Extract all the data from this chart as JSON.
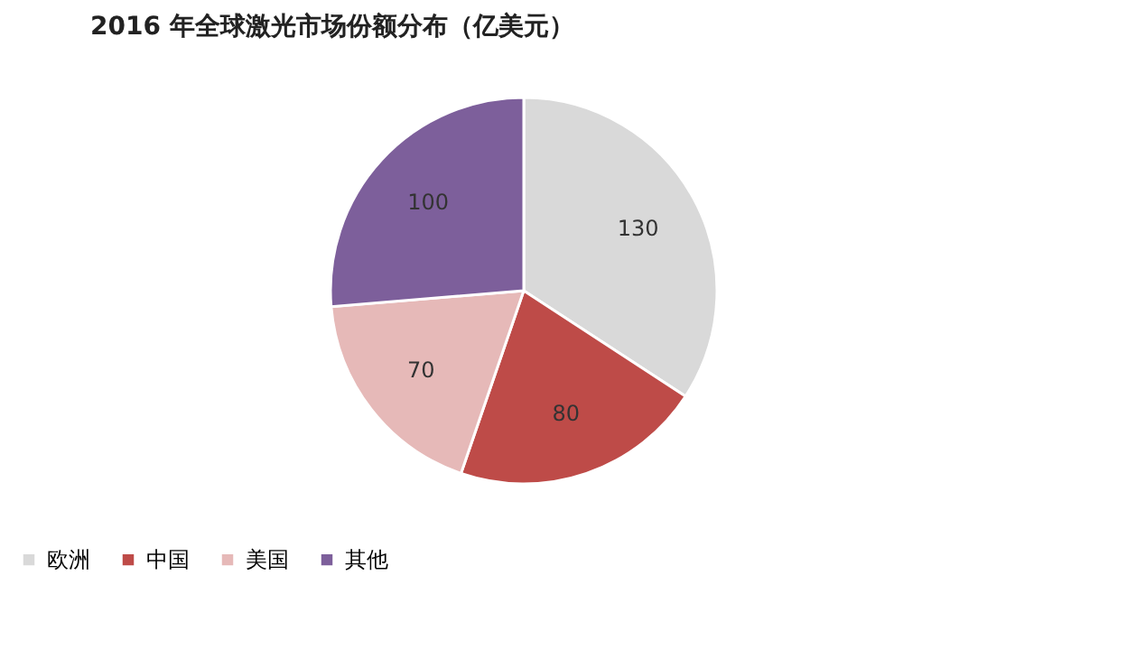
{
  "chart_data": {
    "type": "pie",
    "title": "2016 年全球激光市场份额分布（亿美元）",
    "categories": [
      "欧洲",
      "中国",
      "美国",
      "其他"
    ],
    "values": [
      130,
      80,
      70,
      100
    ],
    "colors": [
      "#d9d9d9",
      "#be4b48",
      "#e6b9b8",
      "#7d5f9b"
    ],
    "data_labels": true,
    "legend": "bottom"
  }
}
